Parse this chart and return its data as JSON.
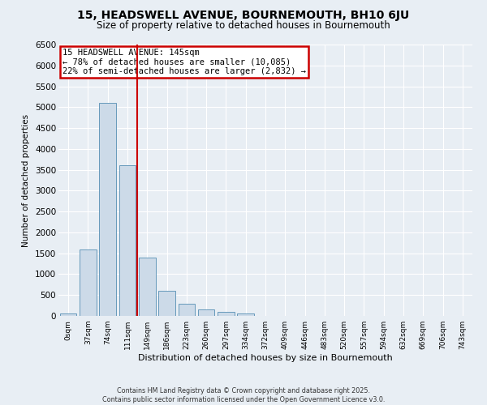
{
  "title_line1": "15, HEADSWELL AVENUE, BOURNEMOUTH, BH10 6JU",
  "title_line2": "Size of property relative to detached houses in Bournemouth",
  "xlabel": "Distribution of detached houses by size in Bournemouth",
  "ylabel": "Number of detached properties",
  "categories": [
    "0sqm",
    "37sqm",
    "74sqm",
    "111sqm",
    "149sqm",
    "186sqm",
    "223sqm",
    "260sqm",
    "297sqm",
    "334sqm",
    "372sqm",
    "409sqm",
    "446sqm",
    "483sqm",
    "520sqm",
    "557sqm",
    "594sqm",
    "632sqm",
    "669sqm",
    "706sqm",
    "743sqm"
  ],
  "values": [
    50,
    1600,
    5100,
    3600,
    1400,
    600,
    300,
    150,
    100,
    50,
    0,
    0,
    0,
    0,
    0,
    0,
    0,
    0,
    0,
    0,
    0
  ],
  "bar_color": "#ccdae8",
  "bar_edge_color": "#6699bb",
  "background_color": "#e8eef4",
  "grid_color": "#ffffff",
  "red_line_x": 3.5,
  "annotation_text": "15 HEADSWELL AVENUE: 145sqm\n← 78% of detached houses are smaller (10,085)\n22% of semi-detached houses are larger (2,832) →",
  "annotation_box_color": "#ffffff",
  "annotation_border_color": "#cc0000",
  "footer_line1": "Contains HM Land Registry data © Crown copyright and database right 2025.",
  "footer_line2": "Contains public sector information licensed under the Open Government Licence v3.0.",
  "ylim": [
    0,
    6500
  ],
  "yticks": [
    0,
    500,
    1000,
    1500,
    2000,
    2500,
    3000,
    3500,
    4000,
    4500,
    5000,
    5500,
    6000,
    6500
  ]
}
